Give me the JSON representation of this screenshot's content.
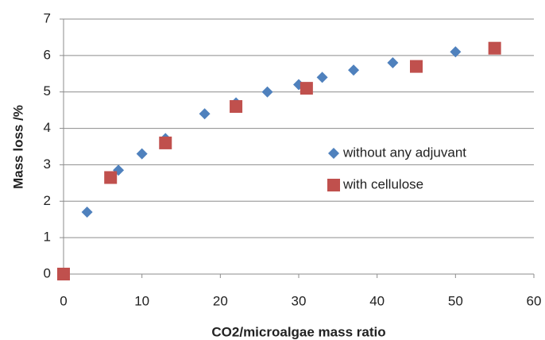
{
  "chart_data": {
    "type": "scatter",
    "xlabel": "CO2/microalgae mass ratio",
    "ylabel": "Mass loss /%",
    "xlim": [
      0,
      60
    ],
    "xticks": [
      0,
      10,
      20,
      30,
      40,
      50,
      60
    ],
    "ylim": [
      0,
      7
    ],
    "yticks": [
      0,
      1,
      2,
      3,
      4,
      5,
      6,
      7
    ],
    "grid": true,
    "legend": "right",
    "series": [
      {
        "name": "without any adjuvant",
        "color": "#4f81bd",
        "marker": "diamond",
        "x": [
          3,
          7,
          10,
          13,
          18,
          22,
          26,
          30,
          33,
          37,
          42,
          50
        ],
        "values": [
          1.7,
          2.85,
          3.3,
          3.72,
          4.4,
          4.7,
          5.0,
          5.2,
          5.4,
          5.6,
          5.8,
          6.1
        ]
      },
      {
        "name": "with cellulose",
        "color": "#c0504d",
        "marker": "square",
        "x": [
          0,
          6,
          13,
          22,
          31,
          45,
          55
        ],
        "values": [
          0,
          2.65,
          3.6,
          4.6,
          5.1,
          5.7,
          6.2
        ]
      }
    ]
  }
}
